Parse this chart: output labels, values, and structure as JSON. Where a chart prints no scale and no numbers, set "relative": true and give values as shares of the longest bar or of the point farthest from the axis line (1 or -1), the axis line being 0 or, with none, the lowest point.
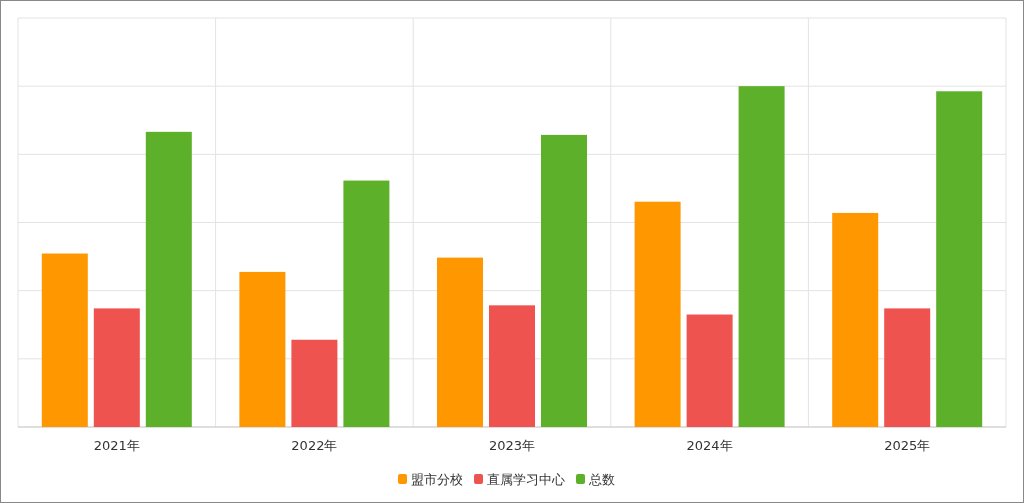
{
  "chart_data": {
    "type": "bar",
    "relative": true,
    "categories": [
      "2021年",
      "2022年",
      "2023年",
      "2024年",
      "2025年"
    ],
    "series": [
      {
        "name": "盟市分校",
        "color": "#ff9800",
        "values": [
          0.509,
          0.455,
          0.497,
          0.661,
          0.628
        ]
      },
      {
        "name": "直属学习中心",
        "color": "#ef5350",
        "values": [
          0.348,
          0.256,
          0.357,
          0.33,
          0.348
        ]
      },
      {
        "name": "总数",
        "color": "#5cb02a",
        "values": [
          0.866,
          0.723,
          0.857,
          1,
          0.985
        ]
      }
    ],
    "grid": true,
    "legend": "bottom"
  }
}
